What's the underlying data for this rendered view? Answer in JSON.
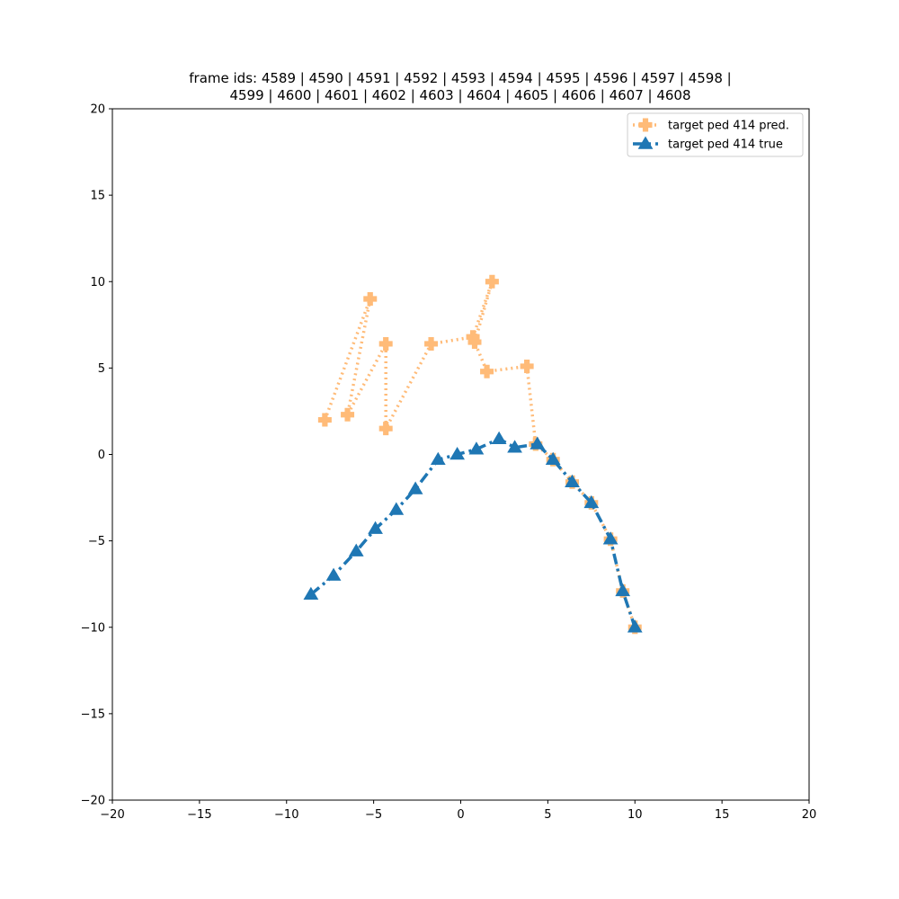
{
  "chart_data": {
    "type": "line",
    "title_line1": "frame ids: 4589 | 4590 | 4591 | 4592 | 4593 | 4594 | 4595 | 4596 | 4597 | 4598 |",
    "title_line2": "4599 | 4600 | 4601 | 4602 | 4603 | 4604 | 4605 | 4606 | 4607 | 4608",
    "xlabel": "",
    "ylabel": "",
    "xlim": [
      -20,
      20
    ],
    "ylim": [
      -20,
      20
    ],
    "xticks": [
      -20,
      -15,
      -10,
      -5,
      0,
      5,
      10,
      15,
      20
    ],
    "yticks": [
      -20,
      -15,
      -10,
      -5,
      0,
      5,
      10,
      15,
      20
    ],
    "xtick_labels": [
      "−20",
      "−15",
      "−10",
      "−5",
      "0",
      "5",
      "10",
      "15",
      "20"
    ],
    "ytick_labels": [
      "−20",
      "−15",
      "−10",
      "−5",
      "0",
      "5",
      "10",
      "15",
      "20"
    ],
    "grid": false,
    "legend_position": "top-right",
    "series": [
      {
        "name": "target ped 414 pred.",
        "color": "#ffbb78",
        "marker": "plus",
        "line_style": "dotted",
        "points": [
          [
            -7.8,
            2.0
          ],
          [
            -5.2,
            9.0
          ],
          [
            -6.5,
            2.3
          ],
          [
            -4.3,
            6.4
          ],
          [
            -4.3,
            1.5
          ],
          [
            -1.7,
            6.4
          ],
          [
            0.7,
            6.8
          ],
          [
            1.8,
            10.0
          ],
          [
            0.8,
            6.5
          ],
          [
            1.5,
            4.8
          ],
          [
            3.8,
            5.1
          ],
          [
            4.3,
            0.6
          ],
          [
            5.3,
            -0.3
          ],
          [
            6.4,
            -1.6
          ],
          [
            7.5,
            -2.8
          ],
          [
            8.6,
            -4.9
          ],
          [
            9.3,
            -7.9
          ],
          [
            10.0,
            -10.0
          ]
        ]
      },
      {
        "name": "target ped 414 true",
        "color": "#1f77b4",
        "marker": "triangle",
        "line_style": "dashdot",
        "points": [
          [
            -8.6,
            -8.1
          ],
          [
            -7.3,
            -7.0
          ],
          [
            -6.0,
            -5.6
          ],
          [
            -4.9,
            -4.3
          ],
          [
            -3.7,
            -3.2
          ],
          [
            -2.6,
            -2.0
          ],
          [
            -1.3,
            -0.3
          ],
          [
            -0.2,
            0.0
          ],
          [
            0.9,
            0.3
          ],
          [
            2.2,
            0.9
          ],
          [
            3.1,
            0.4
          ],
          [
            4.4,
            0.6
          ],
          [
            5.3,
            -0.3
          ],
          [
            6.4,
            -1.6
          ],
          [
            7.5,
            -2.8
          ],
          [
            8.6,
            -4.9
          ],
          [
            9.3,
            -7.9
          ],
          [
            10.0,
            -10.0
          ]
        ]
      }
    ]
  }
}
